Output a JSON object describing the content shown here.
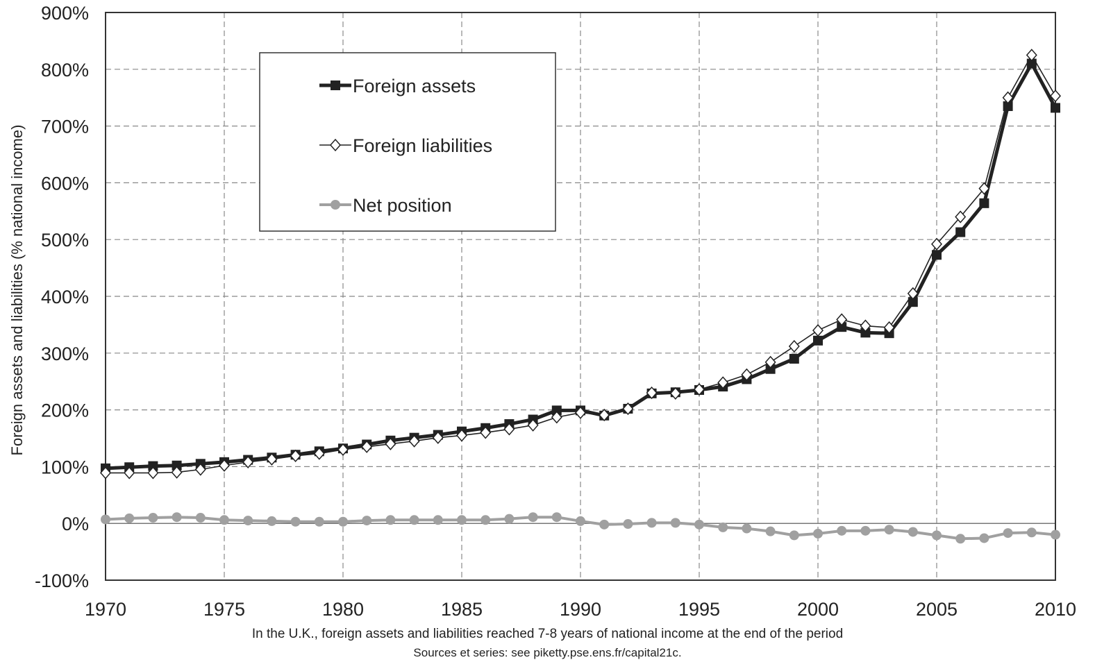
{
  "chart_data": {
    "type": "line",
    "ylabel": "Foreign assets and liabilities (% national income)",
    "ylim": [
      -100,
      900
    ],
    "xlim": [
      1970,
      2010
    ],
    "y_ticks": [
      "-100%",
      "0%",
      "100%",
      "200%",
      "300%",
      "400%",
      "500%",
      "600%",
      "700%",
      "800%",
      "900%"
    ],
    "x_ticks": [
      "1970",
      "1975",
      "1980",
      "1985",
      "1990",
      "1995",
      "2000",
      "2005",
      "2010"
    ],
    "grid": true,
    "legend_position": "top-left",
    "x": [
      1970,
      1971,
      1972,
      1973,
      1974,
      1975,
      1976,
      1977,
      1978,
      1979,
      1980,
      1981,
      1982,
      1983,
      1984,
      1985,
      1986,
      1987,
      1988,
      1989,
      1990,
      1991,
      1992,
      1993,
      1994,
      1995,
      1996,
      1997,
      1998,
      1999,
      2000,
      2001,
      2002,
      2003,
      2004,
      2005,
      2006,
      2007,
      2008,
      2009,
      2010
    ],
    "series": [
      {
        "name": "Foreign assets",
        "color": "#222222",
        "marker": "square",
        "values": [
          97,
          99,
          101,
          102,
          105,
          108,
          112,
          116,
          121,
          127,
          132,
          139,
          146,
          151,
          156,
          162,
          168,
          175,
          183,
          199,
          199,
          190,
          202,
          229,
          231,
          235,
          241,
          254,
          272,
          290,
          322,
          346,
          336,
          335,
          390,
          473,
          513,
          564,
          735,
          810,
          732
        ]
      },
      {
        "name": "Foreign liabilities",
        "color": "#222222",
        "marker": "open-diamond",
        "values": [
          89,
          89,
          89,
          90,
          95,
          102,
          108,
          113,
          119,
          123,
          130,
          135,
          140,
          145,
          151,
          155,
          160,
          166,
          173,
          187,
          195,
          191,
          202,
          230,
          229,
          236,
          248,
          262,
          284,
          312,
          340,
          359,
          348,
          345,
          405,
          492,
          540,
          590,
          750,
          825,
          753
        ]
      },
      {
        "name": "Net position",
        "color": "#a0a0a0",
        "marker": "circle",
        "values": [
          7,
          9,
          10,
          11,
          10,
          6,
          5,
          4,
          3,
          3,
          3,
          5,
          6,
          6,
          6,
          6,
          6,
          8,
          11,
          11,
          4,
          -2,
          -1,
          1,
          1,
          -2,
          -7,
          -9,
          -14,
          -21,
          -18,
          -13,
          -13,
          -11,
          -15,
          -21,
          -27,
          -26,
          -17,
          -16,
          -20
        ]
      }
    ]
  },
  "caption": "In the U.K., foreign assets and liabilities reached 7-8 years of national income at the end of the period",
  "source": "Sources et series: see piketty.pse.ens.fr/capital21c."
}
